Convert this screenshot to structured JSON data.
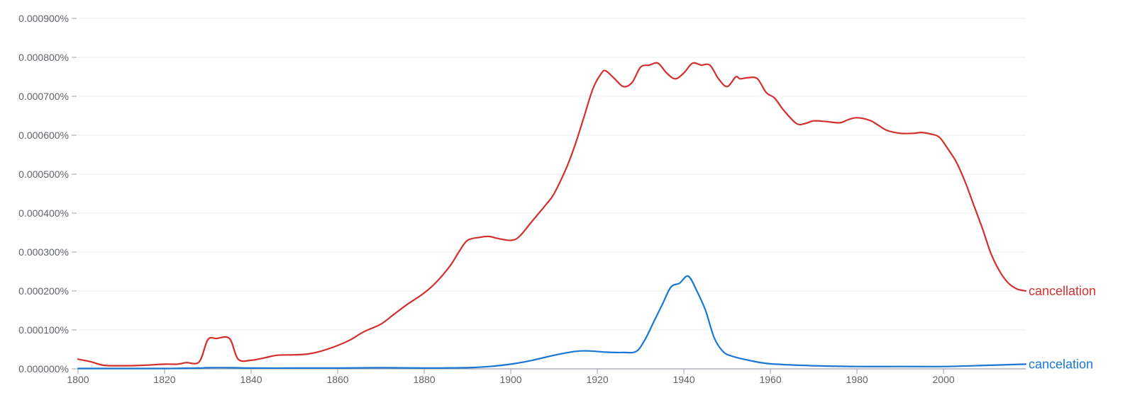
{
  "chart_data": {
    "type": "line",
    "title": "",
    "xlabel": "",
    "ylabel": "",
    "xlim": [
      1800,
      2019
    ],
    "ylim": [
      0,
      0.0009
    ],
    "grid": true,
    "x_ticks": [
      "1800",
      "1820",
      "1840",
      "1860",
      "1880",
      "1900",
      "1920",
      "1940",
      "1960",
      "1980",
      "2000"
    ],
    "y_ticks": [
      "0.000000%",
      "0.000100%",
      "0.000200%",
      "0.000300%",
      "0.000400%",
      "0.000500%",
      "0.000600%",
      "0.000700%",
      "0.000800%",
      "0.000900%"
    ],
    "series": [
      {
        "name": "cancellation",
        "color": "#d32f2f",
        "points": [
          [
            1800,
            2.5e-05
          ],
          [
            1803,
            1.8e-05
          ],
          [
            1806,
            9e-06
          ],
          [
            1810,
            8e-06
          ],
          [
            1815,
            9e-06
          ],
          [
            1820,
            1.2e-05
          ],
          [
            1823,
            1.2e-05
          ],
          [
            1825,
            1.6e-05
          ],
          [
            1828,
            1.8e-05
          ],
          [
            1830,
            7.5e-05
          ],
          [
            1832,
            7.8e-05
          ],
          [
            1835,
            7.8e-05
          ],
          [
            1837,
            2.5e-05
          ],
          [
            1840,
            2.2e-05
          ],
          [
            1843,
            2.8e-05
          ],
          [
            1846,
            3.5e-05
          ],
          [
            1850,
            3.6e-05
          ],
          [
            1853,
            3.8e-05
          ],
          [
            1856,
            4.5e-05
          ],
          [
            1860,
            6e-05
          ],
          [
            1863,
            7.5e-05
          ],
          [
            1866,
            9.5e-05
          ],
          [
            1870,
            0.000115
          ],
          [
            1873,
            0.00014
          ],
          [
            1876,
            0.000165
          ],
          [
            1880,
            0.000195
          ],
          [
            1883,
            0.000225
          ],
          [
            1886,
            0.000265
          ],
          [
            1888,
            0.0003
          ],
          [
            1890,
            0.00033
          ],
          [
            1893,
            0.000338
          ],
          [
            1895,
            0.00034
          ],
          [
            1897,
            0.000335
          ],
          [
            1900,
            0.00033
          ],
          [
            1902,
            0.00034
          ],
          [
            1905,
            0.00038
          ],
          [
            1908,
            0.00042
          ],
          [
            1910,
            0.00045
          ],
          [
            1913,
            0.00052
          ],
          [
            1915,
            0.00058
          ],
          [
            1917,
            0.00065
          ],
          [
            1919,
            0.00072
          ],
          [
            1921,
            0.00076
          ],
          [
            1922,
            0.000765
          ],
          [
            1924,
            0.000745
          ],
          [
            1926,
            0.000725
          ],
          [
            1928,
            0.000735
          ],
          [
            1930,
            0.000775
          ],
          [
            1932,
            0.00078
          ],
          [
            1934,
            0.000785
          ],
          [
            1936,
            0.00076
          ],
          [
            1938,
            0.000745
          ],
          [
            1940,
            0.00076
          ],
          [
            1942,
            0.000785
          ],
          [
            1944,
            0.00078
          ],
          [
            1946,
            0.00078
          ],
          [
            1948,
            0.000745
          ],
          [
            1950,
            0.000725
          ],
          [
            1952,
            0.00075
          ],
          [
            1953,
            0.000745
          ],
          [
            1955,
            0.000748
          ],
          [
            1957,
            0.000745
          ],
          [
            1959,
            0.00071
          ],
          [
            1961,
            0.000695
          ],
          [
            1963,
            0.000665
          ],
          [
            1966,
            0.00063
          ],
          [
            1968,
            0.00063
          ],
          [
            1970,
            0.000637
          ],
          [
            1973,
            0.000635
          ],
          [
            1976,
            0.000632
          ],
          [
            1978,
            0.00064
          ],
          [
            1980,
            0.000645
          ],
          [
            1983,
            0.000638
          ],
          [
            1985,
            0.000625
          ],
          [
            1987,
            0.000612
          ],
          [
            1990,
            0.000605
          ],
          [
            1993,
            0.000605
          ],
          [
            1995,
            0.000607
          ],
          [
            1997,
            0.000603
          ],
          [
            1999,
            0.000595
          ],
          [
            2001,
            0.000565
          ],
          [
            2003,
            0.00053
          ],
          [
            2005,
            0.00048
          ],
          [
            2007,
            0.00042
          ],
          [
            2009,
            0.00036
          ],
          [
            2011,
            0.000295
          ],
          [
            2013,
            0.00025
          ],
          [
            2015,
            0.00022
          ],
          [
            2017,
            0.000205
          ],
          [
            2019,
            0.0002
          ]
        ]
      },
      {
        "name": "cancelation",
        "color": "#1976d2",
        "points": [
          [
            1800,
            1e-06
          ],
          [
            1810,
            1e-06
          ],
          [
            1820,
            1e-06
          ],
          [
            1828,
            2e-06
          ],
          [
            1830,
            3e-06
          ],
          [
            1835,
            3e-06
          ],
          [
            1840,
            2e-06
          ],
          [
            1850,
            2e-06
          ],
          [
            1860,
            2e-06
          ],
          [
            1870,
            3e-06
          ],
          [
            1880,
            2e-06
          ],
          [
            1890,
            3e-06
          ],
          [
            1895,
            6e-06
          ],
          [
            1900,
            1.2e-05
          ],
          [
            1905,
            2.2e-05
          ],
          [
            1910,
            3.5e-05
          ],
          [
            1915,
            4.5e-05
          ],
          [
            1918,
            4.6e-05
          ],
          [
            1922,
            4.3e-05
          ],
          [
            1926,
            4.2e-05
          ],
          [
            1929,
            4.5e-05
          ],
          [
            1931,
            7.5e-05
          ],
          [
            1933,
            0.00012
          ],
          [
            1935,
            0.000165
          ],
          [
            1937,
            0.00021
          ],
          [
            1939,
            0.00022
          ],
          [
            1941,
            0.000238
          ],
          [
            1943,
            0.0002
          ],
          [
            1945,
            0.00015
          ],
          [
            1947,
            8e-05
          ],
          [
            1949,
            4.5e-05
          ],
          [
            1951,
            3.3e-05
          ],
          [
            1955,
            2.2e-05
          ],
          [
            1960,
            1.3e-05
          ],
          [
            1970,
            8e-06
          ],
          [
            1980,
            6e-06
          ],
          [
            1990,
            6e-06
          ],
          [
            2000,
            6e-06
          ],
          [
            2010,
            9e-06
          ],
          [
            2019,
            1.2e-05
          ]
        ]
      }
    ]
  }
}
